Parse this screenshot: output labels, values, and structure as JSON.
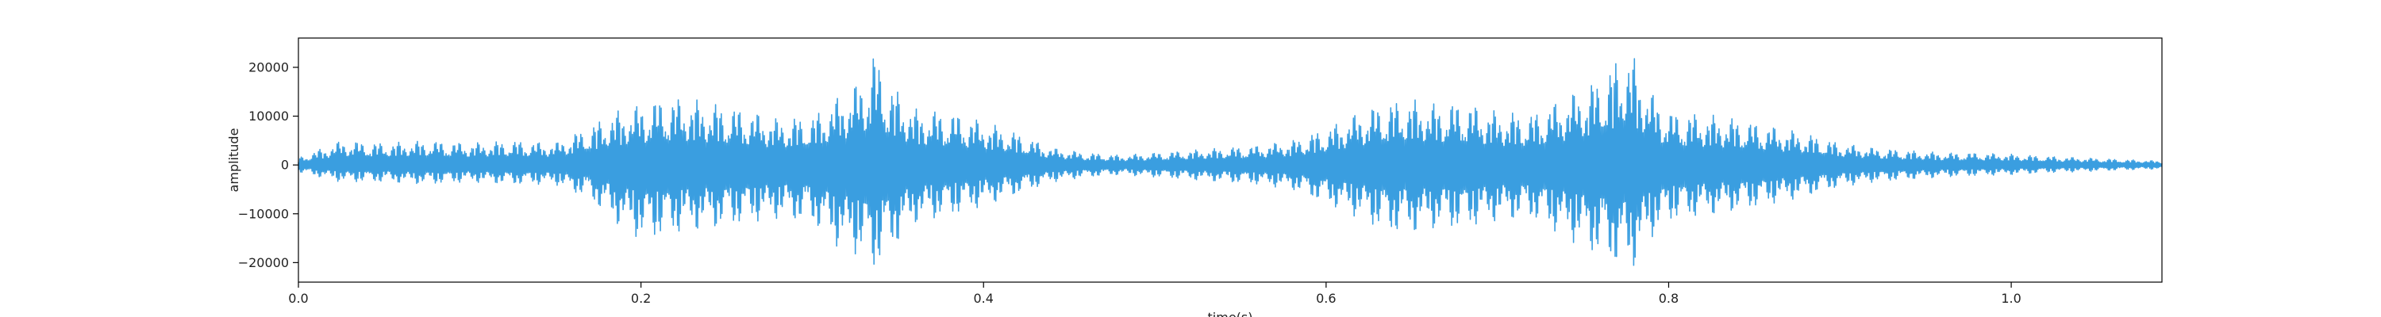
{
  "chart_data": {
    "type": "line",
    "title": "",
    "xlabel": "time(s)",
    "ylabel": "amplitude",
    "xlim": [
      0.0,
      1.088
    ],
    "ylim": [
      -24000,
      26000
    ],
    "x_ticks": [
      0.0,
      0.2,
      0.4,
      0.6,
      0.8,
      1.0
    ],
    "x_tick_labels": [
      "0.0",
      "0.2",
      "0.4",
      "0.6",
      "0.8",
      "1.0"
    ],
    "y_ticks": [
      -20000,
      -10000,
      0,
      10000,
      20000
    ],
    "y_tick_labels": [
      "−20000",
      "−10000",
      "0",
      "10000",
      "20000"
    ],
    "grid": false,
    "legend": "none",
    "line_color": "#3a9ee0",
    "series": [
      {
        "x": [
          0.0,
          0.025,
          0.05,
          0.075,
          0.1,
          0.125,
          0.15,
          0.17,
          0.185,
          0.2,
          0.215,
          0.23,
          0.245,
          0.26,
          0.28,
          0.3,
          0.315,
          0.33,
          0.335,
          0.345,
          0.36,
          0.38,
          0.4,
          0.42,
          0.44,
          0.46,
          0.48,
          0.5,
          0.52,
          0.54,
          0.56,
          0.58,
          0.6,
          0.62,
          0.635,
          0.65,
          0.665,
          0.68,
          0.7,
          0.72,
          0.74,
          0.76,
          0.775,
          0.78,
          0.79,
          0.8,
          0.82,
          0.84,
          0.86,
          0.88,
          0.9,
          0.92,
          0.94,
          0.96,
          0.98,
          1.0,
          1.02,
          1.04,
          1.06,
          1.088
        ],
        "envelope_max": [
          1500,
          5000,
          4500,
          5000,
          4500,
          5000,
          4500,
          8000,
          11000,
          12500,
          14000,
          13500,
          12500,
          11500,
          9500,
          10000,
          14000,
          18000,
          24000,
          17000,
          11500,
          11000,
          9000,
          6500,
          3500,
          2500,
          2000,
          2500,
          3000,
          3500,
          4000,
          5000,
          7500,
          11000,
          13000,
          13500,
          12500,
          13000,
          11000,
          10500,
          14000,
          18000,
          24000,
          22000,
          15000,
          11000,
          10500,
          9500,
          8000,
          6500,
          4500,
          3500,
          3000,
          2500,
          2500,
          2200,
          1800,
          1500,
          1200,
          800
        ],
        "envelope_min": [
          -1500,
          -3500,
          -3500,
          -4000,
          -3500,
          -4000,
          -4000,
          -7000,
          -12000,
          -15500,
          -14500,
          -13500,
          -13000,
          -12000,
          -11000,
          -12000,
          -17000,
          -19000,
          -22000,
          -18000,
          -12000,
          -10500,
          -8500,
          -6000,
          -3500,
          -2500,
          -2000,
          -2500,
          -3000,
          -3500,
          -4000,
          -5000,
          -8000,
          -11000,
          -14000,
          -14000,
          -13000,
          -13000,
          -11500,
          -11000,
          -15000,
          -19000,
          -21500,
          -21000,
          -15000,
          -11500,
          -10500,
          -9500,
          -8000,
          -6500,
          -4500,
          -3500,
          -3000,
          -2500,
          -2200,
          -2000,
          -1600,
          -1400,
          -1100,
          -800
        ]
      }
    ]
  }
}
